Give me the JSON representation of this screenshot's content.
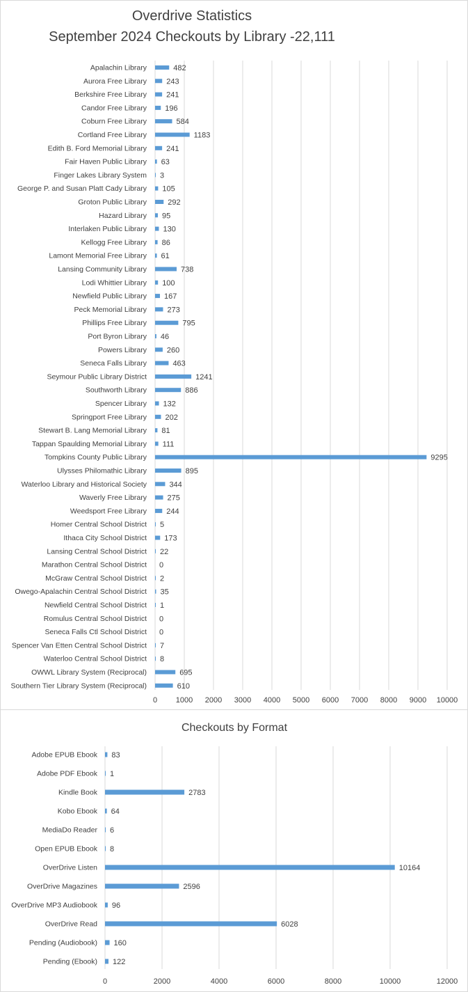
{
  "colors": {
    "bar": "#5b9bd5",
    "grid": "#d9d9d9",
    "text": "#404040"
  },
  "chart_data": [
    {
      "type": "bar",
      "orientation": "horizontal",
      "title_lines": [
        "Overdrive Statistics",
        "September 2024 Checkouts by Library -22,111"
      ],
      "categories": [
        "Apalachin Library",
        "Aurora Free Library",
        "Berkshire Free Library",
        "Candor Free Library",
        "Coburn Free Library",
        "Cortland Free Library",
        "Edith B. Ford Memorial Library",
        "Fair Haven Public Library",
        "Finger Lakes Library System",
        "George P. and Susan Platt Cady Library",
        "Groton Public Library",
        "Hazard Library",
        "Interlaken Public Library",
        "Kellogg Free Library",
        "Lamont Memorial Free Library",
        "Lansing Community Library",
        "Lodi Whittier Library",
        "Newfield Public Library",
        "Peck Memorial Library",
        "Phillips Free Library",
        "Port Byron Library",
        "Powers Library",
        "Seneca Falls Library",
        "Seymour Public Library District",
        "Southworth Library",
        "Spencer Library",
        "Springport Free Library",
        "Stewart B. Lang Memorial Library",
        "Tappan Spaulding Memorial Library",
        "Tompkins County Public Library",
        "Ulysses Philomathic Library",
        "Waterloo Library and Historical Society",
        "Waverly Free Library",
        "Weedsport Free Library",
        "Homer Central School District",
        "Ithaca City School District",
        "Lansing Central School District",
        "Marathon Central School District",
        "McGraw Central School District",
        "Owego-Apalachin Central School District",
        "Newfield Central School District",
        "Romulus Central School District",
        "Seneca Falls Ctl School District",
        "Spencer Van Etten Central School District",
        "Waterloo Central School District",
        "OWWL Library System (Reciprocal)",
        "Southern Tier Library System (Reciprocal)"
      ],
      "values": [
        482,
        243,
        241,
        196,
        584,
        1183,
        241,
        63,
        3,
        105,
        292,
        95,
        130,
        86,
        61,
        738,
        100,
        167,
        273,
        795,
        46,
        260,
        463,
        1241,
        886,
        132,
        202,
        81,
        111,
        9295,
        895,
        344,
        275,
        244,
        5,
        173,
        22,
        0,
        2,
        35,
        1,
        0,
        0,
        7,
        8,
        695,
        610
      ],
      "xlim": [
        0,
        10000
      ],
      "xticks": [
        "0",
        "1000",
        "2000",
        "3000",
        "4000",
        "5000",
        "6000",
        "7000",
        "8000",
        "9000",
        "10000"
      ],
      "grid": true,
      "legend": "none"
    },
    {
      "type": "bar",
      "orientation": "horizontal",
      "title_lines": [
        "Checkouts by Format"
      ],
      "categories": [
        "Adobe EPUB Ebook",
        "Adobe PDF Ebook",
        "Kindle Book",
        "Kobo Ebook",
        "MediaDo Reader",
        "Open EPUB Ebook",
        "OverDrive Listen",
        "OverDrive Magazines",
        "OverDrive MP3 Audiobook",
        "OverDrive Read",
        "Pending (Audiobook)",
        "Pending (Ebook)"
      ],
      "values": [
        83,
        1,
        2783,
        64,
        6,
        8,
        10164,
        2596,
        96,
        6028,
        160,
        122
      ],
      "xlim": [
        0,
        12000
      ],
      "xticks": [
        "0",
        "2000",
        "4000",
        "6000",
        "8000",
        "10000",
        "12000"
      ],
      "grid": true,
      "legend": "none"
    }
  ]
}
